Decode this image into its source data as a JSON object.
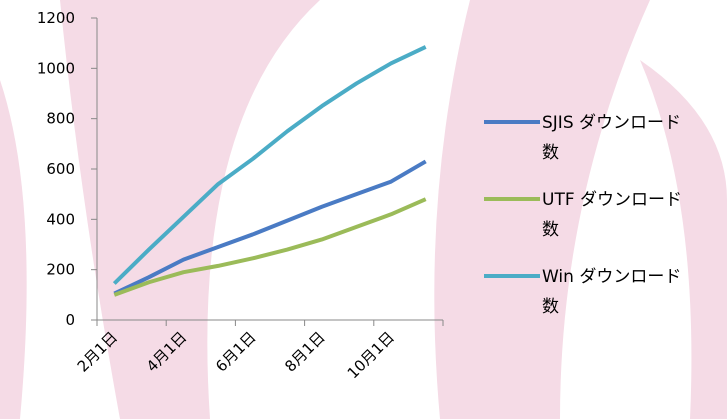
{
  "chart_data": {
    "type": "line",
    "categories": [
      "2月1日",
      null,
      "4月1日",
      null,
      "6月1日",
      null,
      "8月1日",
      null,
      "10月1日",
      null
    ],
    "series": [
      {
        "name": "SJIS ダウンロード数",
        "color": "#4a7bc4",
        "values": [
          105,
          170,
          240,
          290,
          340,
          395,
          450,
          500,
          550,
          630
        ]
      },
      {
        "name": "UTF ダウンロード数",
        "color": "#9bbb59",
        "values": [
          100,
          150,
          190,
          215,
          245,
          280,
          320,
          370,
          420,
          480
        ]
      },
      {
        "name": "Win ダウンロード数",
        "color": "#4bacc6",
        "values": [
          145,
          280,
          410,
          540,
          640,
          750,
          850,
          940,
          1020,
          1085
        ]
      }
    ],
    "ylim": [
      0,
      1200
    ],
    "yticks": [
      0,
      200,
      400,
      600,
      800,
      1000,
      1200
    ],
    "grid": false,
    "legend": "right"
  }
}
